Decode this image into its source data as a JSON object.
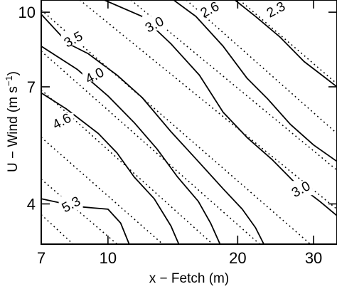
{
  "chart_data": {
    "type": "line",
    "xlabel": "x − Fetch (m)",
    "ylabel_prefix": "U − Wind (m s",
    "ylabel_sup": "−1",
    "ylabel_suffix": ")",
    "xscale": "log",
    "yscale": "log",
    "xlim": [
      7,
      34
    ],
    "ylim": [
      3.3,
      10.6
    ],
    "xticks": [
      {
        "value": 7,
        "label": "7"
      },
      {
        "value": 10,
        "label": "10"
      },
      {
        "value": 20,
        "label": "20"
      },
      {
        "value": 30,
        "label": "30"
      }
    ],
    "yticks": [
      {
        "value": 4,
        "label": "4"
      },
      {
        "value": 7,
        "label": "7"
      },
      {
        "value": 10,
        "label": "10"
      }
    ],
    "grid": false,
    "solid_contours": [
      {
        "level": "2.3",
        "points": [
          [
            19.7,
            10.6
          ],
          [
            22,
            9.8
          ],
          [
            25,
            8.9
          ],
          [
            28.5,
            7.9
          ],
          [
            32,
            7.3
          ],
          [
            34,
            7.0
          ]
        ]
      },
      {
        "level": "2.6",
        "points": [
          [
            14.2,
            10.6
          ],
          [
            16,
            9.8
          ],
          [
            18.5,
            8.5
          ],
          [
            21,
            7.3
          ],
          [
            23.5,
            6.6
          ],
          [
            26.5,
            5.85
          ],
          [
            30,
            5.3
          ],
          [
            34,
            4.9
          ]
        ]
      },
      {
        "level": "3.0",
        "points": [
          [
            9.8,
            10.6
          ],
          [
            12,
            9.8
          ],
          [
            14,
            8.6
          ],
          [
            16.3,
            7.4
          ],
          [
            18.5,
            6.2
          ],
          [
            21,
            5.5
          ],
          [
            24,
            4.95
          ],
          [
            27,
            4.45
          ],
          [
            31,
            4.05
          ],
          [
            34,
            3.78
          ]
        ]
      },
      {
        "level": "3.5",
        "points": [
          [
            7.0,
            9.9
          ],
          [
            8.1,
            8.6
          ],
          [
            9.0,
            8.2
          ],
          [
            10.5,
            7.4
          ],
          [
            12,
            6.65
          ],
          [
            14,
            5.65
          ],
          [
            16.2,
            4.9
          ],
          [
            18.5,
            4.3
          ],
          [
            20.5,
            3.9
          ],
          [
            22,
            3.57
          ],
          [
            23,
            3.3
          ]
        ]
      },
      {
        "level": "4.0",
        "points": [
          [
            7.0,
            8.5
          ],
          [
            8.5,
            7.6
          ],
          [
            10,
            6.7
          ],
          [
            11.5,
            5.9
          ],
          [
            13,
            5.2
          ],
          [
            14.5,
            4.55
          ],
          [
            16.2,
            4.05
          ],
          [
            17.3,
            3.65
          ],
          [
            18.2,
            3.3
          ]
        ]
      },
      {
        "level": "4.6",
        "points": [
          [
            7.0,
            6.8
          ],
          [
            8.0,
            6.3
          ],
          [
            9.5,
            5.6
          ],
          [
            10.5,
            5.1
          ],
          [
            11.5,
            4.55
          ],
          [
            12.8,
            4.1
          ],
          [
            14.0,
            3.6
          ],
          [
            14.6,
            3.3
          ]
        ]
      },
      {
        "level": "5.3",
        "points": [
          [
            7.0,
            4.1
          ],
          [
            8.5,
            3.95
          ],
          [
            10.0,
            3.9
          ],
          [
            10.7,
            3.65
          ],
          [
            11.2,
            3.3
          ]
        ]
      }
    ],
    "dotted_lines": [
      [
        [
          20.2,
          10.6
        ],
        [
          34,
          7.1
        ]
      ],
      [
        [
          15.2,
          10.6
        ],
        [
          34,
          5.6
        ]
      ],
      [
        [
          11.3,
          10.6
        ],
        [
          34,
          4.7
        ]
      ],
      [
        [
          8.6,
          10.6
        ],
        [
          34,
          3.9
        ]
      ],
      [
        [
          7.0,
          10.1
        ],
        [
          29.5,
          3.3
        ]
      ],
      [
        [
          7.0,
          8.3
        ],
        [
          22.5,
          3.3
        ]
      ],
      [
        [
          7.0,
          6.9
        ],
        [
          17.5,
          3.3
        ]
      ],
      [
        [
          7.0,
          5.5
        ],
        [
          13.4,
          3.3
        ]
      ],
      [
        [
          7.0,
          4.5
        ],
        [
          10.5,
          3.3
        ]
      ],
      [
        [
          7.0,
          3.8
        ],
        [
          8.3,
          3.3
        ]
      ]
    ],
    "contour_labels": [
      {
        "text": "2.3",
        "x": 24.5,
        "y": 10.15
      },
      {
        "text": "2.6",
        "x": 17.2,
        "y": 10.15
      },
      {
        "text": "3.0",
        "x": 12.8,
        "y": 9.45
      },
      {
        "text": "3.5",
        "x": 8.3,
        "y": 8.8
      },
      {
        "text": "4.0",
        "x": 9.3,
        "y": 7.4
      },
      {
        "text": "4.6",
        "x": 7.8,
        "y": 5.95
      },
      {
        "text": "5.3",
        "x": 8.2,
        "y": 4.0
      },
      {
        "text": "3.0",
        "x": 28.0,
        "y": 4.3
      }
    ]
  }
}
